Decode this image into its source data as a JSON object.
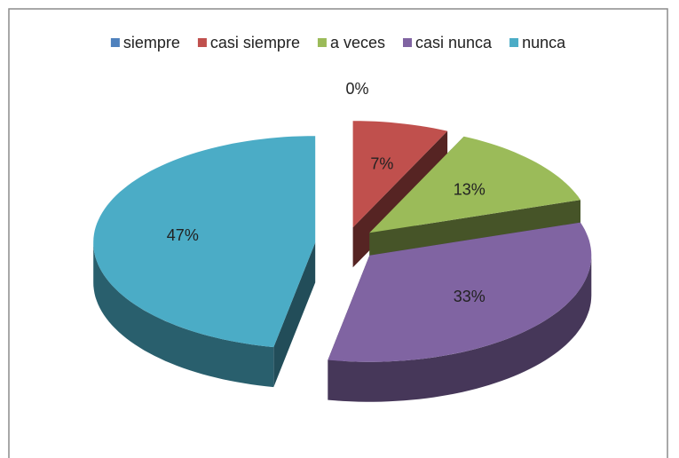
{
  "chart_data": {
    "type": "pie",
    "categories": [
      "siempre",
      "casi siempre",
      "a veces",
      "casi nunca",
      "nunca"
    ],
    "values": [
      0,
      7,
      13,
      33,
      47
    ],
    "value_labels": [
      "0%",
      "7%",
      "13%",
      "33%",
      "47%"
    ],
    "colors": [
      "#4f81bd",
      "#c0504d",
      "#9bbb59",
      "#8064a2",
      "#4bacc6"
    ],
    "legend": "top"
  }
}
